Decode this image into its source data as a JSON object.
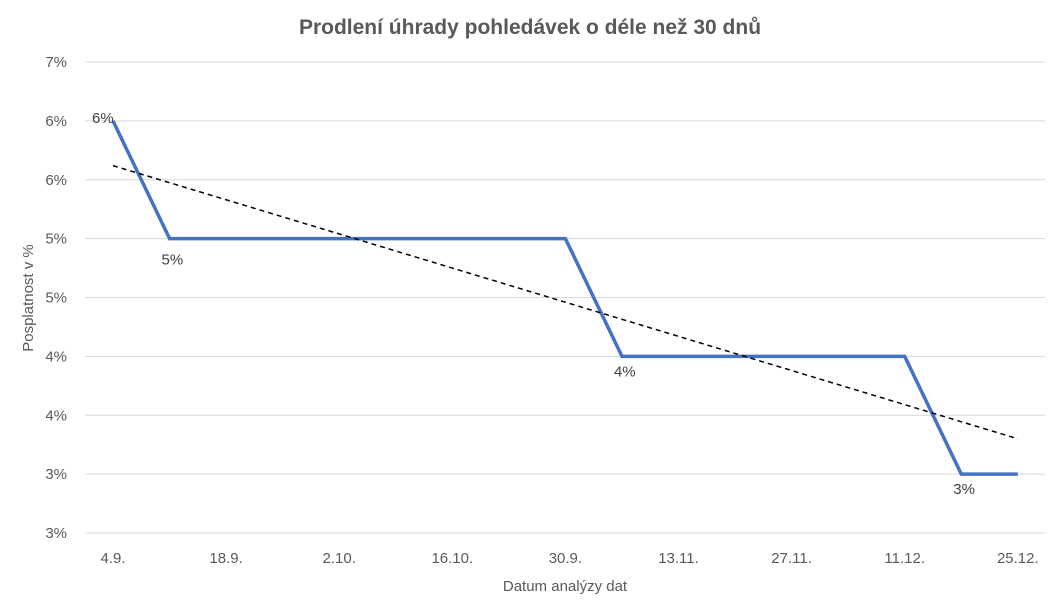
{
  "chart_data": {
    "type": "line",
    "title": "Prodlení úhrady pohledávek o déle než 30 dnů",
    "xlabel": "Datum analýzy dat",
    "ylabel": "Posplatnost v %",
    "categories": [
      "4.9.",
      "18.9.",
      "2.10.",
      "16.10.",
      "30.9.",
      "13.11.",
      "27.11.",
      "11.12.",
      "25.12."
    ],
    "y_tick_labels": [
      "7%",
      "6%",
      "6%",
      "5%",
      "5%",
      "4%",
      "4%",
      "3%",
      "3%"
    ],
    "ylim": [
      2.5,
      6.5
    ],
    "grid": true,
    "legend": "none",
    "series": [
      {
        "x": [
          0,
          0.5,
          1,
          2,
          3,
          4,
          4.5,
          5,
          6,
          7,
          7.5,
          8
        ],
        "values": [
          6,
          5,
          5,
          5,
          5,
          5,
          4,
          4,
          4,
          4,
          3,
          3
        ],
        "color": "#4472C4"
      }
    ],
    "data_labels": [
      {
        "x": 0,
        "y": 6,
        "text": "6%"
      },
      {
        "x": 0.5,
        "y": 5,
        "text": "5%"
      },
      {
        "x": 4.5,
        "y": 4,
        "text": "4%"
      },
      {
        "x": 7.5,
        "y": 3,
        "text": "3%"
      }
    ],
    "trendline": {
      "type": "linear",
      "start": [
        0,
        5.62
      ],
      "end": [
        8,
        3.3
      ],
      "color": "#000000",
      "style": "dashed"
    }
  }
}
